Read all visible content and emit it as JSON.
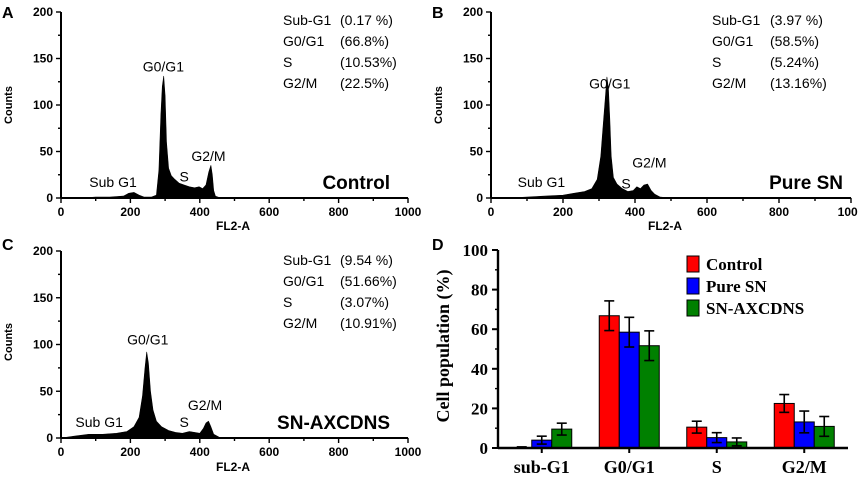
{
  "colors": {
    "axis": "#000000",
    "histogram_fill": "#000000",
    "control": "#ff0000",
    "pure_sn": "#0000ff",
    "sn_axcdns": "#008000",
    "error_bar": "#000000"
  },
  "chart_data": [
    {
      "panel": "A",
      "type": "area",
      "title": "Control",
      "xlabel": "FL2-A",
      "ylabel": "Counts",
      "xlim": [
        0,
        1000
      ],
      "ylim": [
        0,
        200
      ],
      "xticks": [
        "0",
        "200",
        "400",
        "600",
        "800",
        "1000"
      ],
      "yticks": [
        "0",
        "50",
        "100",
        "150",
        "200"
      ],
      "grid": false,
      "peak_labels": [
        {
          "text": "Sub G1",
          "x": 150,
          "y": 12
        },
        {
          "text": "G0/G1",
          "x": 295,
          "y": 136
        },
        {
          "text": "S",
          "x": 355,
          "y": 18
        },
        {
          "text": "G2/M",
          "x": 425,
          "y": 40
        }
      ],
      "stats": [
        {
          "phase": "Sub-G1",
          "value": "(0.17 %)"
        },
        {
          "phase": "G0/G1",
          "value": "(66.8%)"
        },
        {
          "phase": "S",
          "value": "(10.53%)"
        },
        {
          "phase": "G2/M",
          "value": "(22.5%)"
        }
      ],
      "histogram": {
        "x": [
          0,
          60,
          100,
          140,
          180,
          195,
          210,
          225,
          240,
          260,
          275,
          282,
          288,
          292,
          296,
          300,
          304,
          310,
          318,
          328,
          340,
          355,
          370,
          385,
          398,
          408,
          418,
          426,
          432,
          436,
          440,
          445,
          460,
          500,
          600,
          1000
        ],
        "y": [
          0,
          0,
          1,
          1,
          2,
          5,
          6,
          3,
          1,
          1,
          3,
          30,
          90,
          120,
          131,
          110,
          60,
          32,
          24,
          20,
          16,
          14,
          12,
          11,
          12,
          10,
          14,
          28,
          35,
          25,
          8,
          2,
          0,
          0,
          0,
          0
        ]
      }
    },
    {
      "panel": "B",
      "type": "area",
      "title": "Pure SN",
      "xlabel": "FL2-A",
      "ylabel": "Counts",
      "xlim": [
        0,
        1000
      ],
      "ylim": [
        0,
        200
      ],
      "xticks": [
        "0",
        "200",
        "400",
        "600",
        "800",
        "1000"
      ],
      "yticks": [
        "0",
        "50",
        "100",
        "150",
        "200"
      ],
      "grid": false,
      "peak_labels": [
        {
          "text": "Sub G1",
          "x": 140,
          "y": 12
        },
        {
          "text": "G0/G1",
          "x": 330,
          "y": 118
        },
        {
          "text": "S",
          "x": 375,
          "y": 10
        },
        {
          "text": "G2/M",
          "x": 440,
          "y": 33
        }
      ],
      "stats": [
        {
          "phase": "Sub-G1",
          "value": "(3.97 %)"
        },
        {
          "phase": "G0/G1",
          "value": "(58.5%)"
        },
        {
          "phase": "S",
          "value": "(5.24%)"
        },
        {
          "phase": "G2/M",
          "value": "(13.16%)"
        }
      ],
      "histogram": {
        "x": [
          0,
          50,
          100,
          150,
          200,
          230,
          260,
          280,
          295,
          305,
          312,
          318,
          322,
          326,
          330,
          334,
          340,
          350,
          365,
          380,
          395,
          405,
          415,
          425,
          435,
          445,
          455,
          470,
          500,
          600,
          1000
        ],
        "y": [
          0,
          0,
          1,
          2,
          3,
          5,
          7,
          10,
          20,
          45,
          80,
          110,
          130,
          118,
          85,
          45,
          22,
          15,
          10,
          7,
          8,
          12,
          10,
          14,
          15,
          8,
          4,
          1,
          0,
          0,
          0
        ]
      }
    },
    {
      "panel": "C",
      "type": "area",
      "title": "SN-AXCDNS",
      "xlabel": "FL2-A",
      "ylabel": "Counts",
      "xlim": [
        0,
        1000
      ],
      "ylim": [
        0,
        200
      ],
      "xticks": [
        "0",
        "200",
        "400",
        "600",
        "800",
        "1000"
      ],
      "yticks": [
        "0",
        "50",
        "100",
        "150",
        "200"
      ],
      "grid": false,
      "peak_labels": [
        {
          "text": "Sub G1",
          "x": 110,
          "y": 12
        },
        {
          "text": "G0/G1",
          "x": 250,
          "y": 100
        },
        {
          "text": "S",
          "x": 355,
          "y": 12
        },
        {
          "text": "G2/M",
          "x": 415,
          "y": 30
        }
      ],
      "stats": [
        {
          "phase": "Sub-G1",
          "value": "(9.54 %)"
        },
        {
          "phase": "G0/G1",
          "value": "(51.66%)"
        },
        {
          "phase": "S",
          "value": "(3.07%)"
        },
        {
          "phase": "G2/M",
          "value": "(10.91%)"
        }
      ],
      "histogram": {
        "x": [
          0,
          40,
          80,
          120,
          160,
          190,
          210,
          225,
          235,
          242,
          247,
          252,
          258,
          265,
          275,
          290,
          310,
          330,
          350,
          370,
          385,
          400,
          410,
          418,
          425,
          432,
          440,
          460,
          500,
          600,
          1000
        ],
        "y": [
          0,
          2,
          4,
          4,
          5,
          7,
          12,
          22,
          45,
          75,
          92,
          80,
          50,
          30,
          18,
          12,
          8,
          6,
          5,
          7,
          6,
          5,
          10,
          16,
          18,
          12,
          4,
          0,
          0,
          0,
          0
        ]
      }
    },
    {
      "panel": "D",
      "type": "bar",
      "title": "",
      "xlabel": "",
      "ylabel": "Cell population (%)",
      "ylim": [
        0,
        100
      ],
      "yticks": [
        "0",
        "20",
        "40",
        "60",
        "80",
        "100"
      ],
      "categories": [
        "sub-G1",
        "G0/G1",
        "S",
        "G2/M"
      ],
      "series": [
        {
          "name": "Control",
          "color_key": "control",
          "values": [
            0.17,
            66.8,
            10.53,
            22.5
          ],
          "errors": [
            0.4,
            7.5,
            3.0,
            4.5
          ]
        },
        {
          "name": "Pure SN",
          "color_key": "pure_sn",
          "values": [
            3.97,
            58.5,
            5.24,
            13.16
          ],
          "errors": [
            2.0,
            7.5,
            2.5,
            5.5
          ]
        },
        {
          "name": "SN-AXCDNS",
          "color_key": "sn_axcdns",
          "values": [
            9.54,
            51.66,
            3.07,
            10.91
          ],
          "errors": [
            3.0,
            7.5,
            2.0,
            5.0
          ]
        }
      ],
      "legend": "top-right"
    }
  ]
}
